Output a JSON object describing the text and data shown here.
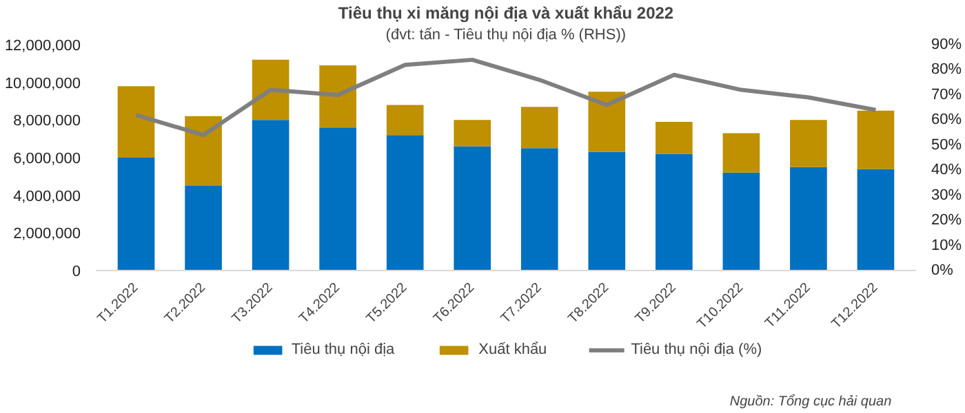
{
  "chart_data": {
    "type": "bar",
    "title": "Tiêu thụ xi măng nội địa và xuất khẩu 2022",
    "subtitle": "(đvt: tấn - Tiêu thụ nội địa % (RHS))",
    "categories": [
      "T1.2022",
      "T2.2022",
      "T3.2022",
      "T4.2022",
      "T5.2022",
      "T6.2022",
      "T7.2022",
      "T8.2022",
      "T9.2022",
      "T10.2022",
      "T11.2022",
      "T12.2022"
    ],
    "stacked": true,
    "series": [
      {
        "name": "Tiêu thụ nội địa",
        "color": "#0070c0",
        "values": [
          6000000,
          4500000,
          8000000,
          7600000,
          7200000,
          6600000,
          6500000,
          6300000,
          6200000,
          5200000,
          5500000,
          5400000
        ]
      },
      {
        "name": "Xuất khẩu",
        "color": "#bf9000",
        "values": [
          3800000,
          3700000,
          3200000,
          3300000,
          1600000,
          1400000,
          2200000,
          3200000,
          1700000,
          2100000,
          2500000,
          3100000
        ]
      },
      {
        "name": "Tiêu thụ nội địa (%)",
        "type": "line",
        "axis": "y2",
        "color": "#7f7f7f",
        "values": [
          62,
          54,
          72,
          70,
          82,
          84,
          76,
          66,
          78,
          72,
          69,
          64
        ]
      }
    ],
    "ylim": [
      0,
      12000000
    ],
    "yticks": [
      {
        "value": 0,
        "label": "0"
      },
      {
        "value": 2000000,
        "label": "2,000,000"
      },
      {
        "value": 4000000,
        "label": "4,000,000"
      },
      {
        "value": 6000000,
        "label": "6,000,000"
      },
      {
        "value": 8000000,
        "label": "8,000,000"
      },
      {
        "value": 10000000,
        "label": "10,000,000"
      },
      {
        "value": 12000000,
        "label": "12,000,000"
      }
    ],
    "y2lim": [
      0,
      90
    ],
    "y2ticks": [
      {
        "value": 0,
        "label": "0%"
      },
      {
        "value": 10,
        "label": "10%"
      },
      {
        "value": 20,
        "label": "20%"
      },
      {
        "value": 30,
        "label": "30%"
      },
      {
        "value": 40,
        "label": "40%"
      },
      {
        "value": 50,
        "label": "50%"
      },
      {
        "value": 60,
        "label": "60%"
      },
      {
        "value": 70,
        "label": "70%"
      },
      {
        "value": 80,
        "label": "80%"
      },
      {
        "value": 90,
        "label": "90%"
      }
    ],
    "grid": false,
    "legend": "bottom",
    "line_style": "solid",
    "marker": "none",
    "annotations": [
      "Nguồn: Tổng cục hải quan"
    ]
  }
}
